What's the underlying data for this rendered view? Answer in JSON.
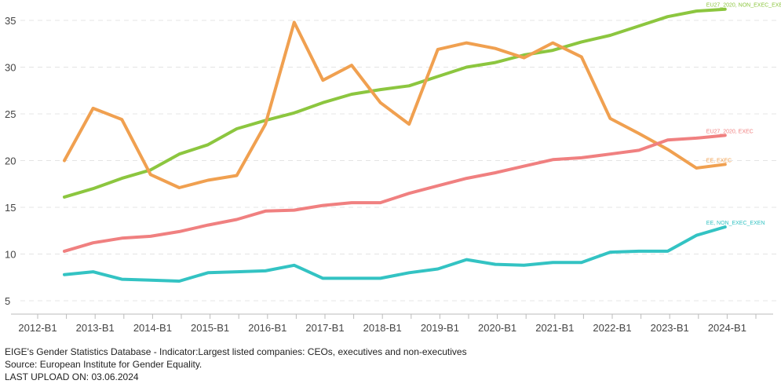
{
  "chart_data": {
    "type": "line",
    "x_tick_labels": [
      "2012-B1",
      "2013-B1",
      "2014-B1",
      "2015-B1",
      "2016-B1",
      "2017-B1",
      "2018-B1",
      "2019-B1",
      "2020-B1",
      "2021-B1",
      "2022-B1",
      "2023-B1",
      "2024-B1"
    ],
    "x": [
      "2012-B2",
      "2013-B1",
      "2013-B2",
      "2014-B1",
      "2014-B2",
      "2015-B1",
      "2015-B2",
      "2016-B1",
      "2016-B2",
      "2017-B1",
      "2017-B2",
      "2018-B1",
      "2018-B2",
      "2019-B1",
      "2019-B2",
      "2020-B1",
      "2020-B2",
      "2021-B1",
      "2021-B2",
      "2022-B1",
      "2022-B2",
      "2023-B1",
      "2023-B2",
      "2024-B1"
    ],
    "ylim": [
      4,
      37
    ],
    "y_ticks": [
      5,
      10,
      15,
      20,
      25,
      30,
      35
    ],
    "grid": "horizontal dashed",
    "legend": "labels at line ends",
    "series": [
      {
        "name": "EU27_2020, NON_EXEC_EXE",
        "color": "#8cc63f",
        "values": [
          16.1,
          17.0,
          18.1,
          19.0,
          20.7,
          21.7,
          23.4,
          24.3,
          25.1,
          26.2,
          27.1,
          27.6,
          28.0,
          29.0,
          30.0,
          30.5,
          31.3,
          31.8,
          32.7,
          33.4,
          34.4,
          35.4,
          36.0,
          36.2
        ]
      },
      {
        "name": "EE, EXEC",
        "color": "#f0a050",
        "values": [
          20.0,
          25.6,
          24.4,
          18.5,
          17.1,
          17.9,
          18.4,
          23.9,
          34.8,
          28.6,
          30.2,
          26.2,
          23.9,
          31.9,
          32.6,
          32.0,
          31.0,
          32.6,
          31.1,
          24.5,
          22.9,
          21.2,
          19.2,
          19.6
        ]
      },
      {
        "name": "EU27_2020, EXEC",
        "color": "#f08080",
        "values": [
          10.3,
          11.2,
          11.7,
          11.9,
          12.4,
          13.1,
          13.7,
          14.6,
          14.7,
          15.2,
          15.5,
          15.5,
          16.5,
          17.3,
          18.1,
          18.7,
          19.4,
          20.1,
          20.3,
          20.7,
          21.1,
          22.2,
          22.4,
          22.7
        ]
      },
      {
        "name": "EE, NON_EXEC_EXEN",
        "color": "#33c3c3",
        "values": [
          7.8,
          8.1,
          7.3,
          7.2,
          7.1,
          8.0,
          8.1,
          8.2,
          8.8,
          7.4,
          7.4,
          7.4,
          8.0,
          8.4,
          9.4,
          8.9,
          8.8,
          9.1,
          9.1,
          10.2,
          10.3,
          10.3,
          12.0,
          12.9
        ]
      }
    ]
  },
  "footer": {
    "line1": "EIGE's Gender Statistics Database - Indicator:Largest listed companies: CEOs, executives and non-executives",
    "line2": "Source: European Institute for Gender Equality.",
    "line3": "LAST UPLOAD ON: 03.06.2024"
  }
}
